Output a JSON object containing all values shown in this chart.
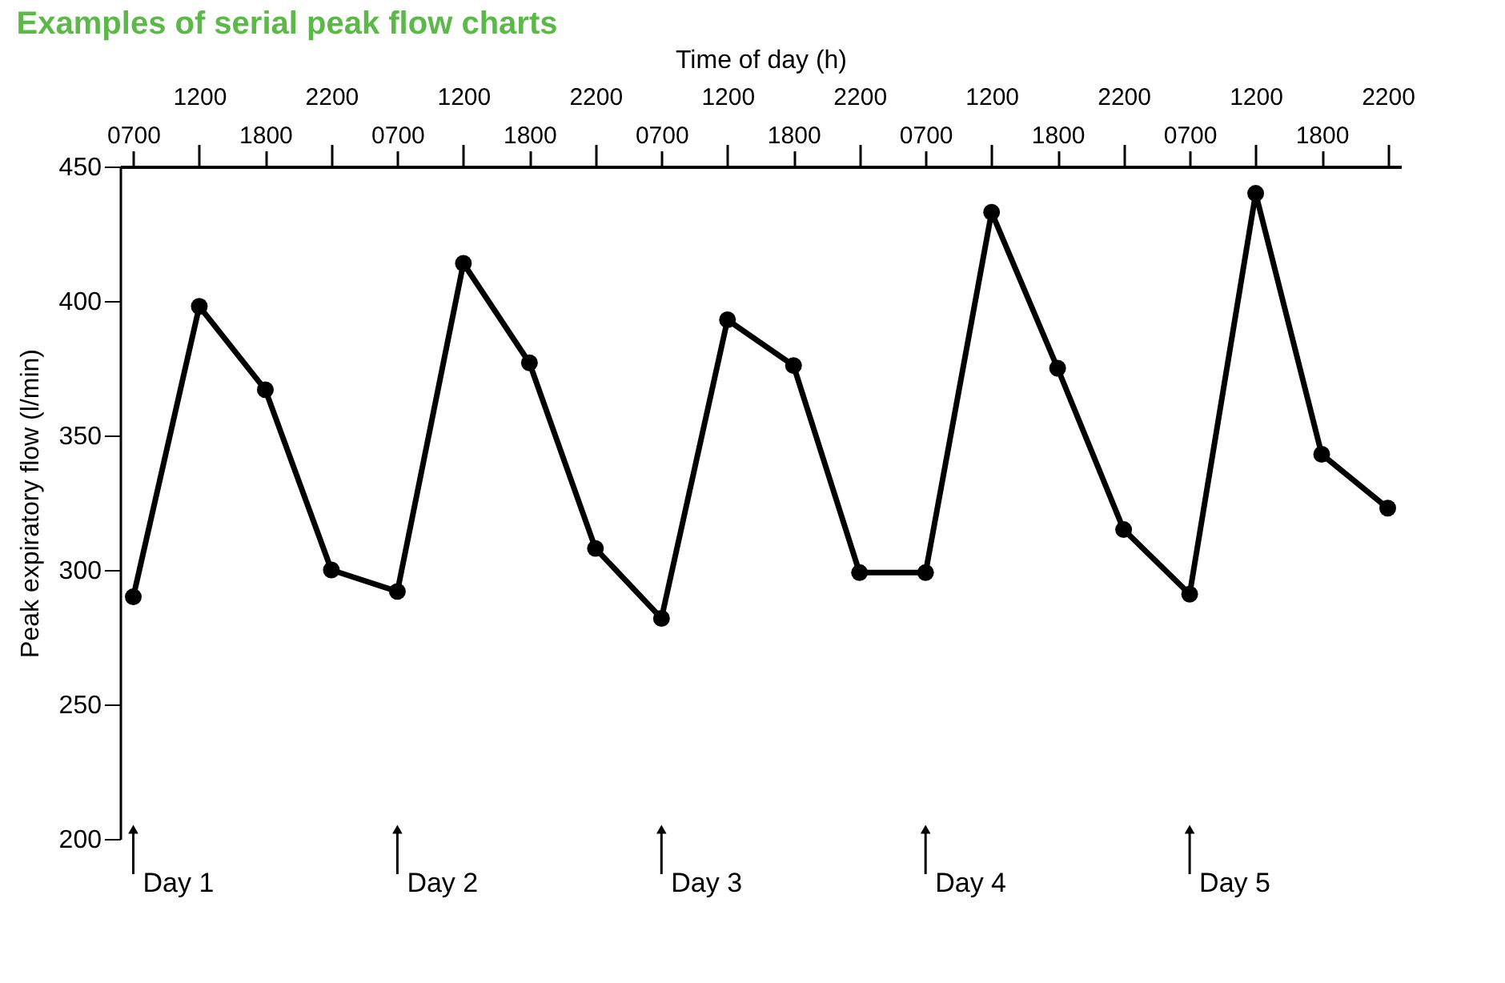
{
  "chart_data": {
    "type": "line",
    "title": "Examples of serial peak flow charts",
    "xlabel": "Time of day (h)",
    "ylabel": "Peak expiratory flow (l/min)",
    "categories": [
      "0700",
      "1200",
      "1800",
      "2200",
      "0700",
      "1200",
      "1800",
      "2200",
      "0700",
      "1200",
      "1800",
      "2200",
      "0700",
      "1200",
      "1800",
      "2200",
      "0700",
      "1200",
      "1800",
      "2200"
    ],
    "series": [
      {
        "color": "#000000",
        "values": [
          290,
          398,
          367,
          300,
          292,
          414,
          377,
          308,
          282,
          393,
          376,
          299,
          299,
          433,
          375,
          315,
          291,
          440,
          343,
          323
        ]
      }
    ],
    "ylim": [
      200,
      450
    ],
    "yticks": [
      200,
      250,
      300,
      350,
      400,
      450
    ],
    "annotations": [
      "Day 1",
      "Day 2",
      "Day 3",
      "Day 4",
      "Day 5"
    ],
    "marker": "circle",
    "line_style": "solid",
    "grid": false
  }
}
